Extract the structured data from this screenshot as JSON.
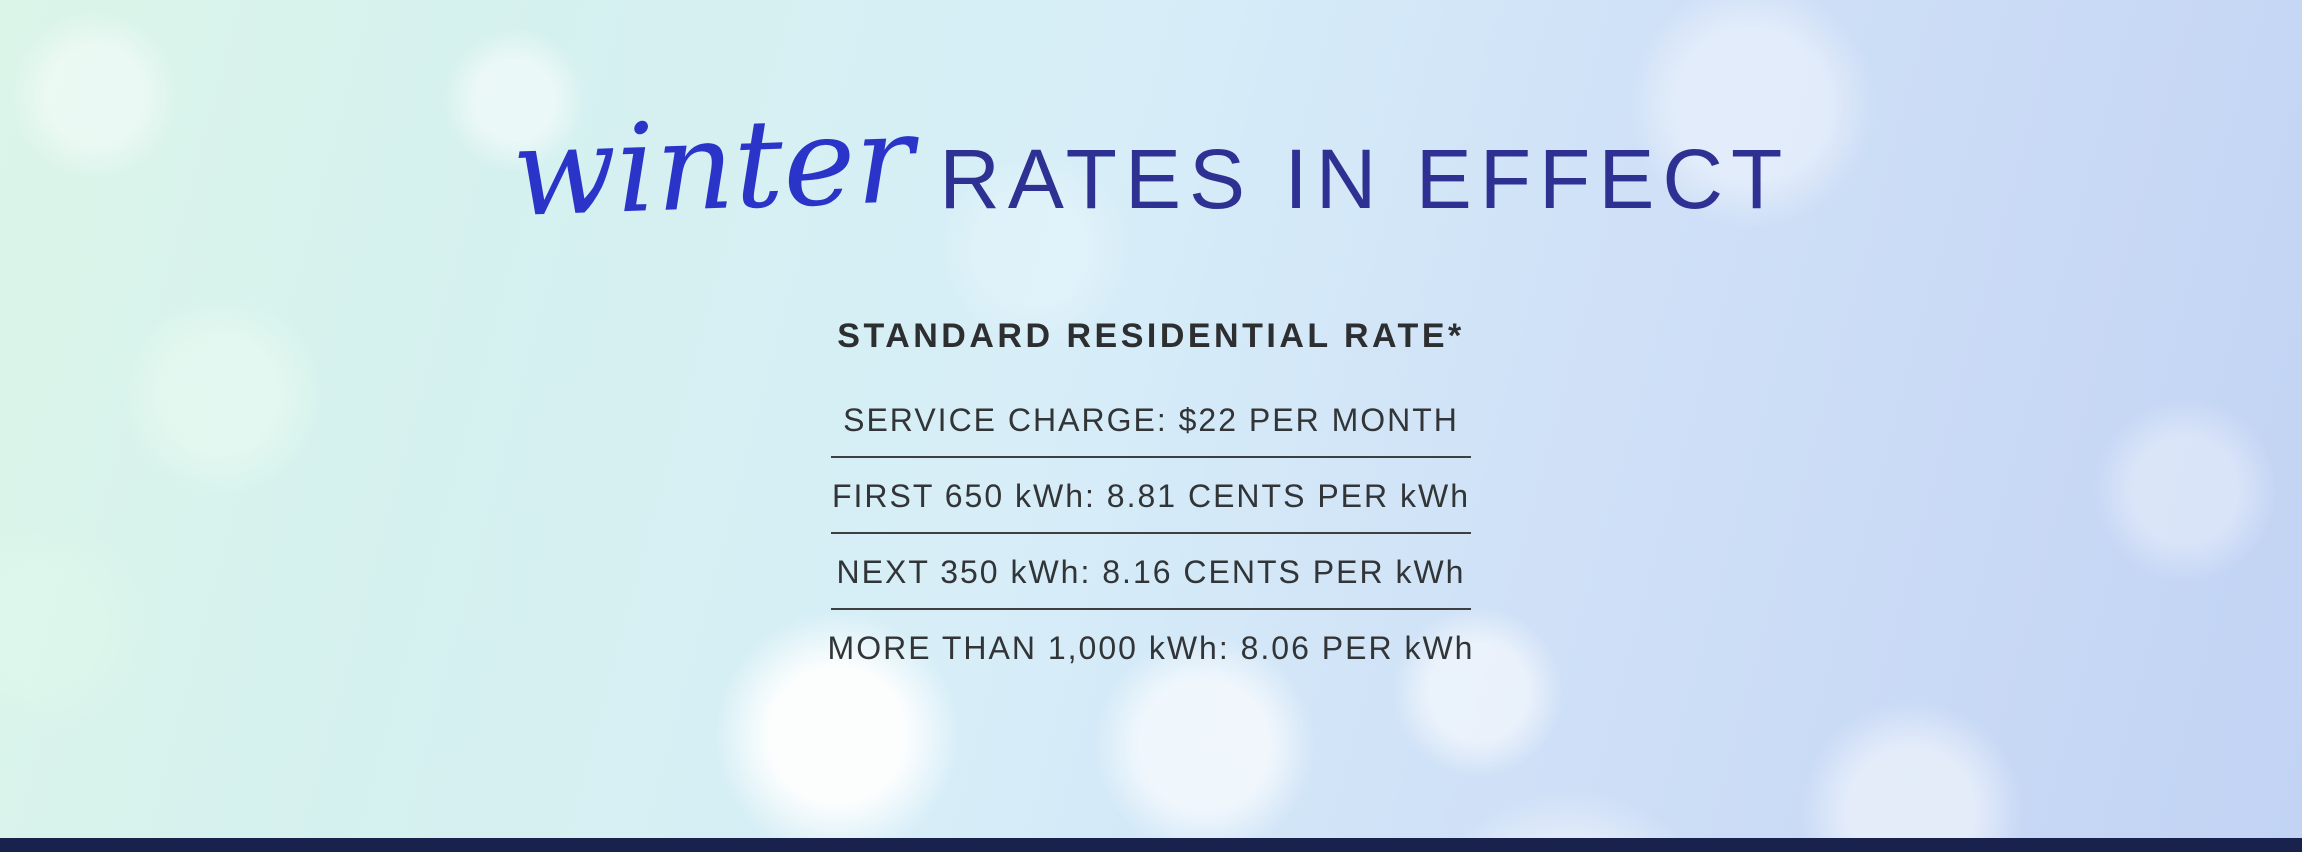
{
  "banner": {
    "title_script": "winter",
    "title_caps": "RATES IN EFFECT",
    "subtitle": "STANDARD RESIDENTIAL RATE*",
    "rates": [
      "SERVICE CHARGE: $22 PER MONTH",
      "FIRST 650 kWh: 8.81 CENTS PER kWh",
      "NEXT 350 kWh: 8.16 CENTS PER kWh",
      "MORE THAN 1,000 kWh: 8.06 PER kWh"
    ],
    "colors": {
      "script_blue": "#2a34c8",
      "caps_indigo": "#2e3192",
      "text_dark": "#323537",
      "divider": "#3d3f41",
      "bottom_bar_navy": "#18224d",
      "background_mint": "#dcf5e9",
      "background_blue": "#c2d3f4"
    }
  }
}
